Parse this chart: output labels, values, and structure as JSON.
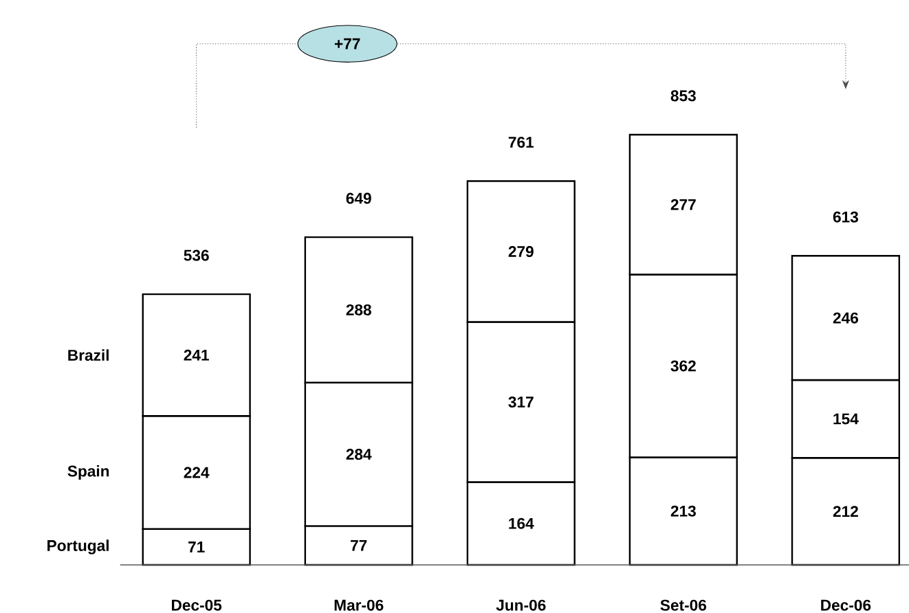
{
  "chart_data": {
    "type": "bar",
    "stacked": true,
    "data_labels": true,
    "tick_labels": "x",
    "categories": [
      "Dec-05",
      "Mar-06",
      "Jun-06",
      "Set-06",
      "Dec-06"
    ],
    "series": [
      {
        "name": "Portugal",
        "color": "#ffffff",
        "values": [
          71,
          77,
          164,
          213,
          212
        ]
      },
      {
        "name": "Spain",
        "color": "#ffffff",
        "values": [
          224,
          284,
          317,
          362,
          154
        ]
      },
      {
        "name": "Brazil",
        "color": "#ffffff",
        "values": [
          241,
          288,
          279,
          277,
          246
        ]
      }
    ],
    "totals": [
      "536",
      "649",
      "761",
      "853",
      "613"
    ],
    "annotations": [
      "+77"
    ]
  }
}
